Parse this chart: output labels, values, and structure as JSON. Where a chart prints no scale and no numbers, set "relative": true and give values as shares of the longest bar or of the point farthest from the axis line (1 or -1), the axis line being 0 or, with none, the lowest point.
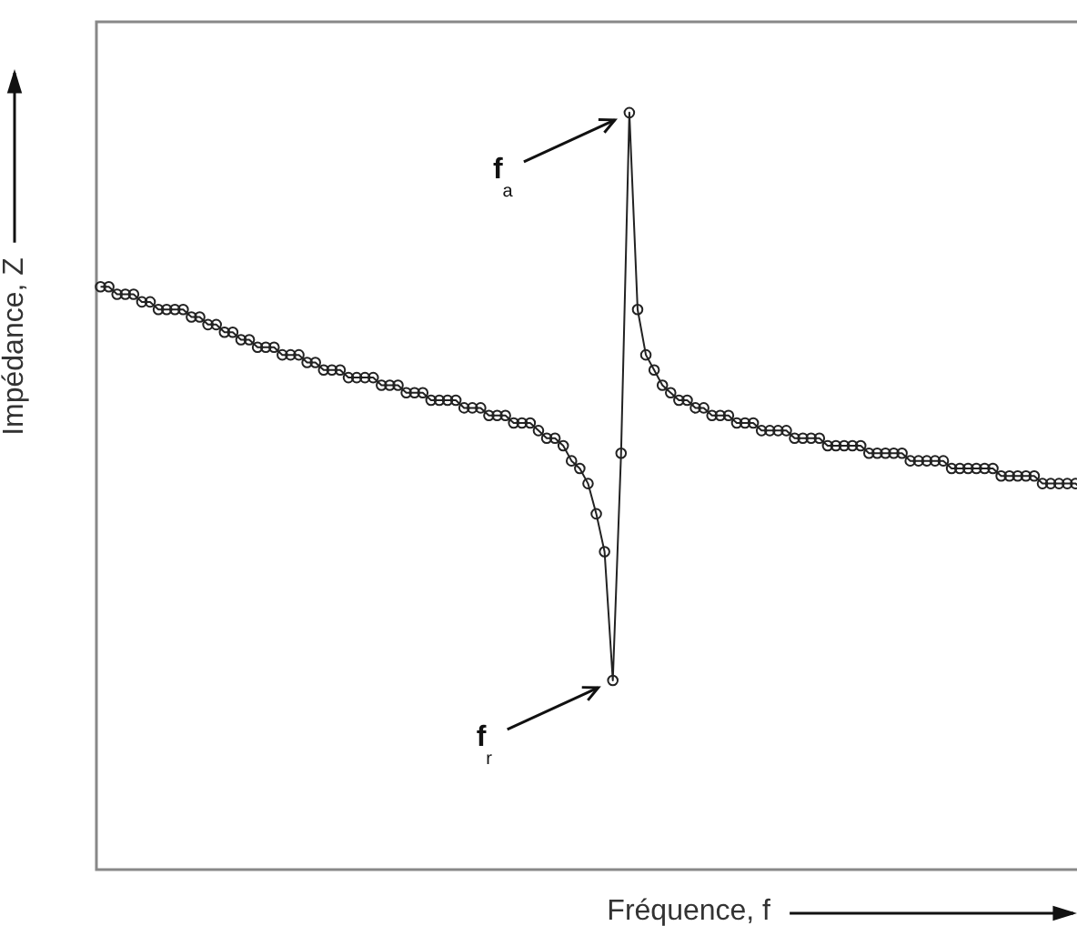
{
  "chart_data": {
    "type": "line",
    "relative": true,
    "xlabel": "Fréquence, f",
    "ylabel": "Impédance, Z",
    "marker": "circle",
    "line_style": "solid",
    "color": "#222222",
    "categories": [
      null,
      null,
      null,
      null,
      null,
      null,
      null,
      null,
      null,
      null,
      null,
      null,
      null,
      null,
      null,
      null,
      null,
      null,
      null,
      null,
      null,
      null,
      null,
      null,
      null,
      null,
      null,
      null,
      null,
      null,
      null,
      null,
      null,
      null,
      null,
      null,
      null,
      null,
      null,
      null,
      null,
      null,
      null,
      null,
      null,
      null,
      null,
      null,
      null,
      null,
      null,
      null,
      null,
      null,
      null,
      null,
      null,
      null,
      null,
      null,
      null,
      null,
      null,
      null,
      null,
      null,
      null,
      null,
      null,
      null,
      null,
      null,
      null,
      null,
      null,
      null,
      null,
      null,
      null,
      null,
      null,
      null,
      null,
      null,
      null,
      null,
      null,
      null,
      null,
      null,
      null,
      null,
      null,
      null,
      null,
      null,
      null,
      null,
      null,
      null,
      null,
      null,
      null,
      null,
      null,
      null,
      null,
      null,
      null,
      null,
      null,
      null,
      null,
      null,
      null,
      null,
      null,
      null,
      null,
      null
    ],
    "values": [
      0.77,
      0.77,
      0.76,
      0.76,
      0.76,
      0.75,
      0.75,
      0.74,
      0.74,
      0.74,
      0.74,
      0.73,
      0.73,
      0.72,
      0.72,
      0.71,
      0.71,
      0.7,
      0.7,
      0.69,
      0.69,
      0.69,
      0.68,
      0.68,
      0.68,
      0.67,
      0.67,
      0.66,
      0.66,
      0.66,
      0.65,
      0.65,
      0.65,
      0.65,
      0.64,
      0.64,
      0.64,
      0.63,
      0.63,
      0.63,
      0.62,
      0.62,
      0.62,
      0.62,
      0.61,
      0.61,
      0.61,
      0.6,
      0.6,
      0.6,
      0.59,
      0.59,
      0.59,
      0.58,
      0.57,
      0.57,
      0.56,
      0.54,
      0.53,
      0.51,
      0.47,
      0.42,
      0.25,
      0.55,
      1,
      0.74,
      0.68,
      0.66,
      0.64,
      0.63,
      0.62,
      0.62,
      0.61,
      0.61,
      0.6,
      0.6,
      0.6,
      0.59,
      0.59,
      0.59,
      0.58,
      0.58,
      0.58,
      0.58,
      0.57,
      0.57,
      0.57,
      0.57,
      0.56,
      0.56,
      0.56,
      0.56,
      0.56,
      0.55,
      0.55,
      0.55,
      0.55,
      0.55,
      0.54,
      0.54,
      0.54,
      0.54,
      0.54,
      0.53,
      0.53,
      0.53,
      0.53,
      0.53,
      0.53,
      0.52,
      0.52,
      0.52,
      0.52,
      0.52,
      0.51,
      0.51,
      0.51,
      0.51,
      0.51,
      0.5
    ],
    "annotations": [
      "f$_{a}$",
      "f$_{r}$"
    ]
  }
}
